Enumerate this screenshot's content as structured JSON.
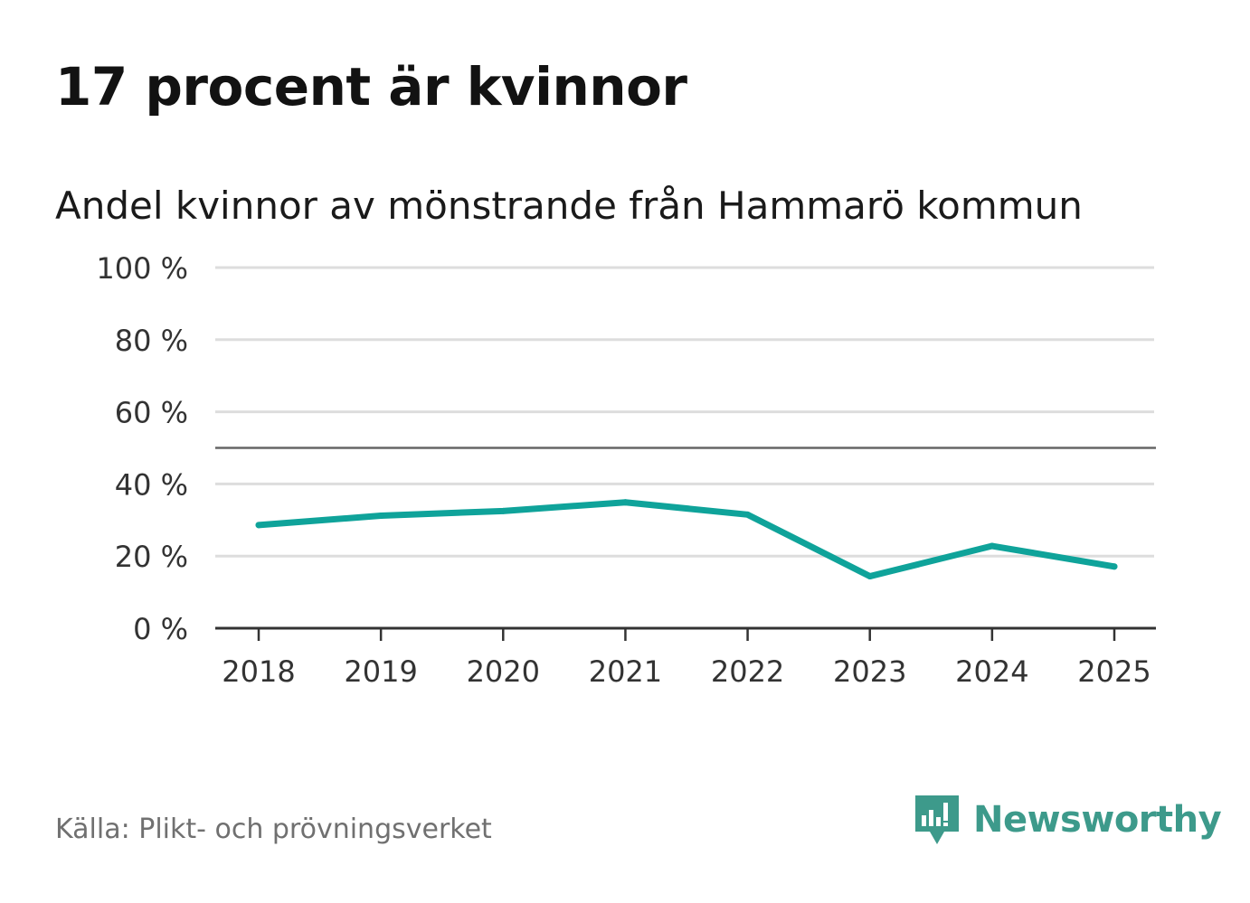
{
  "header": {
    "title": "17 procent är kvinnor",
    "subtitle": "Andel kvinnor av mönstrande från Hammarö kommun"
  },
  "footer": {
    "source": "Källa: Plikt- och prövningsverket",
    "brand": "Newsworthy"
  },
  "colors": {
    "line": "#0fa39a",
    "reference_line": "#666666",
    "grid": "#dddddd",
    "axis": "#333333",
    "brand": "#3d9a8b"
  },
  "chart_data": {
    "type": "line",
    "title": "17 procent är kvinnor",
    "subtitle": "Andel kvinnor av mönstrande från Hammarö kommun",
    "xlabel": "",
    "ylabel": "",
    "categories": [
      "2018",
      "2019",
      "2020",
      "2021",
      "2022",
      "2023",
      "2024",
      "2025"
    ],
    "series": [
      {
        "name": "Andel kvinnor",
        "values": [
          28.6,
          31.2,
          32.5,
          34.9,
          31.5,
          14.4,
          22.8,
          17.1
        ]
      }
    ],
    "ylim": [
      0,
      100
    ],
    "yticks": [
      0,
      20,
      40,
      60,
      80,
      100
    ],
    "ytick_labels": [
      "0 %",
      "20 %",
      "40 %",
      "60 %",
      "80 %",
      "100 %"
    ],
    "reference_line": 50,
    "grid": true,
    "legend": "none"
  }
}
